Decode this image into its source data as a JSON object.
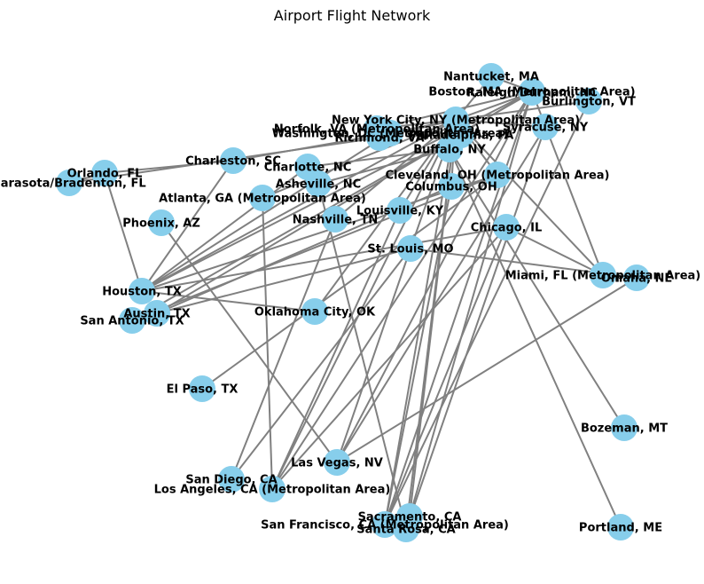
{
  "title": "Airport Flight Network",
  "colors": {
    "node": "#87ceeb",
    "edge": "#808080",
    "label": "#000000"
  },
  "nodes": [
    {
      "id": "NAN",
      "label": "Nantucket, MA"
    },
    {
      "id": "BOS",
      "label": "Boston, MA (Metropolitan Area)"
    },
    {
      "id": "RDU",
      "label": "Raleigh/Durham, NC"
    },
    {
      "id": "BTV",
      "label": "Burlington, VT"
    },
    {
      "id": "NYC",
      "label": "New York City, NY (Metropolitan Area)"
    },
    {
      "id": "SYR",
      "label": "Syracuse, NY"
    },
    {
      "id": "ORF",
      "label": "Norfolk, VA (Metropolitan Area)"
    },
    {
      "id": "WAS",
      "label": "Washington, DC (Metropolitan Area)"
    },
    {
      "id": "RIC",
      "label": "Richmond, VA"
    },
    {
      "id": "PHL",
      "label": "Philadelphia, PA"
    },
    {
      "id": "BUF",
      "label": "Buffalo, NY"
    },
    {
      "id": "CHS",
      "label": "Charleston, SC"
    },
    {
      "id": "CLT",
      "label": "Charlotte, NC"
    },
    {
      "id": "MCO",
      "label": "Orlando, FL"
    },
    {
      "id": "SRQ",
      "label": "Sarasota/Bradenton, FL"
    },
    {
      "id": "CLE",
      "label": "Cleveland, OH (Metropolitan Area)"
    },
    {
      "id": "CMH",
      "label": "Columbus, OH"
    },
    {
      "id": "AVL",
      "label": "Asheville, NC"
    },
    {
      "id": "ATL",
      "label": "Atlanta, GA (Metropolitan Area)"
    },
    {
      "id": "SDF",
      "label": "Louisville, KY"
    },
    {
      "id": "BNA",
      "label": "Nashville, TN"
    },
    {
      "id": "PHX",
      "label": "Phoenix, AZ"
    },
    {
      "id": "CHI",
      "label": "Chicago, IL"
    },
    {
      "id": "STL",
      "label": "St. Louis, MO"
    },
    {
      "id": "MIA",
      "label": "Miami, FL (Metropolitan Area)"
    },
    {
      "id": "OMA",
      "label": "Omaha, NE"
    },
    {
      "id": "HOU",
      "label": "Houston, TX"
    },
    {
      "id": "AUS",
      "label": "Austin, TX"
    },
    {
      "id": "SAT",
      "label": "San Antonio, TX"
    },
    {
      "id": "OKC",
      "label": "Oklahoma City, OK"
    },
    {
      "id": "ELP",
      "label": "El Paso, TX"
    },
    {
      "id": "BZN",
      "label": "Bozeman, MT"
    },
    {
      "id": "LAS",
      "label": "Las Vegas, NV"
    },
    {
      "id": "SAN",
      "label": "San Diego, CA"
    },
    {
      "id": "LAX",
      "label": "Los Angeles, CA (Metropolitan Area)"
    },
    {
      "id": "SMF",
      "label": "Sacramento, CA"
    },
    {
      "id": "SFO",
      "label": "San Francisco, CA (Metropolitan Area)"
    },
    {
      "id": "STS",
      "label": "Santa Rosa, CA"
    },
    {
      "id": "PWM",
      "label": "Portland, ME"
    }
  ],
  "edges": [
    [
      "MCO",
      "SRQ"
    ],
    [
      "MCO",
      "CHS"
    ],
    [
      "MCO",
      "HOU"
    ],
    [
      "CHS",
      "WAS"
    ],
    [
      "CHS",
      "HOU"
    ],
    [
      "SRQ",
      "RIC"
    ],
    [
      "CLT",
      "BUF"
    ],
    [
      "CLT",
      "HOU"
    ],
    [
      "ATL",
      "NYC"
    ],
    [
      "ATL",
      "LAX"
    ],
    [
      "AVL",
      "BUF"
    ],
    [
      "AVL",
      "STS"
    ],
    [
      "PHX",
      "LAS"
    ],
    [
      "BNA",
      "NYC"
    ],
    [
      "BNA",
      "SAN"
    ],
    [
      "SDF",
      "NYC"
    ],
    [
      "SDF",
      "LAX"
    ],
    [
      "HOU",
      "NYC"
    ],
    [
      "HOU",
      "WAS"
    ],
    [
      "HOU",
      "CHI"
    ],
    [
      "HOU",
      "OKC"
    ],
    [
      "HOU",
      "BOS"
    ],
    [
      "HOU",
      "CLE"
    ],
    [
      "AUS",
      "BOS"
    ],
    [
      "AUS",
      "CMH"
    ],
    [
      "SAT",
      "RDU"
    ],
    [
      "SAT",
      "CLE"
    ],
    [
      "STL",
      "NYC"
    ],
    [
      "STL",
      "LAS"
    ],
    [
      "STL",
      "OMA"
    ],
    [
      "STL",
      "AUS"
    ],
    [
      "CHI",
      "SFO"
    ],
    [
      "CHI",
      "MIA"
    ],
    [
      "CHI",
      "LAX"
    ],
    [
      "OKC",
      "NYC"
    ],
    [
      "ELP",
      "CLE"
    ],
    [
      "LAS",
      "OMA"
    ],
    [
      "LAS",
      "SYR"
    ],
    [
      "LAS",
      "BOS"
    ],
    [
      "LAX",
      "BOS"
    ],
    [
      "LAX",
      "NYC"
    ],
    [
      "SAN",
      "STL"
    ],
    [
      "SFO",
      "BOS"
    ],
    [
      "SFO",
      "NYC"
    ],
    [
      "SFO",
      "BTV"
    ],
    [
      "SFO",
      "CMH"
    ],
    [
      "STS",
      "NYC"
    ],
    [
      "STS",
      "SYR"
    ],
    [
      "SMF",
      "NYC"
    ],
    [
      "SMF",
      "BOS"
    ],
    [
      "PWM",
      "BUF"
    ],
    [
      "BZN",
      "BUF"
    ],
    [
      "MIA",
      "NYC"
    ],
    [
      "MIA",
      "BOS"
    ],
    [
      "NAN",
      "NYC"
    ],
    [
      "NAN",
      "BOS"
    ],
    [
      "RDU",
      "BOS"
    ],
    [
      "RDU",
      "NYC"
    ],
    [
      "BTV",
      "NYC"
    ],
    [
      "SYR",
      "NYC"
    ],
    [
      "ORF",
      "NYC"
    ],
    [
      "ORF",
      "BOS"
    ],
    [
      "WAS",
      "NYC"
    ],
    [
      "PHL",
      "NYC"
    ],
    [
      "RIC",
      "NYC"
    ],
    [
      "CLE",
      "NYC"
    ],
    [
      "CMH",
      "NYC"
    ],
    [
      "BUF",
      "NYC"
    ]
  ]
}
